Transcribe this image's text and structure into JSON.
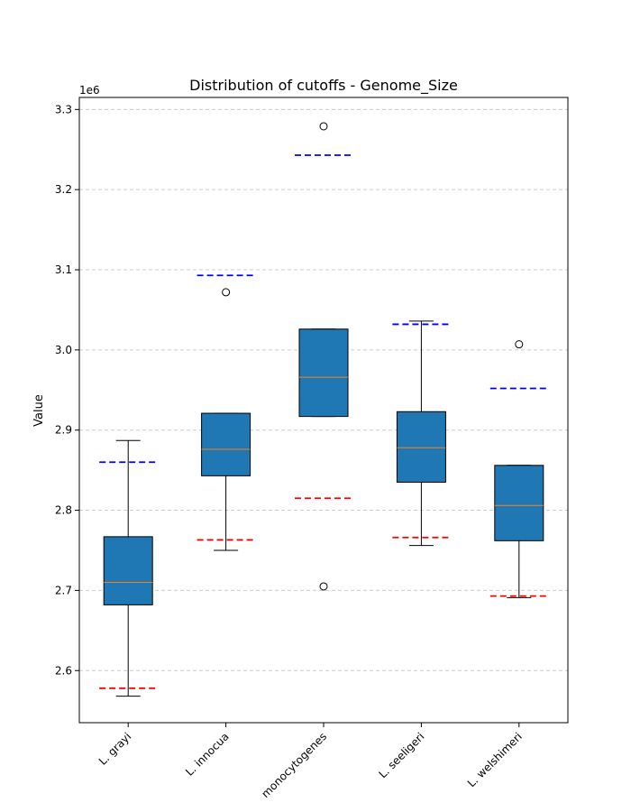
{
  "chart_data": {
    "type": "boxplot",
    "title": "Distribution of cutoffs - Genome_Size",
    "xlabel": "",
    "ylabel": "Value",
    "y_scale_label": "1e6",
    "ylim": [
      2.535,
      3.315
    ],
    "yticks": [
      2.6,
      2.7,
      2.8,
      2.9,
      3.0,
      3.1,
      3.2,
      3.3
    ],
    "ytick_labels": [
      "2.6",
      "2.7",
      "2.8",
      "2.9",
      "3.0",
      "3.1",
      "3.2",
      "3.3"
    ],
    "grid": "y-dashed",
    "categories": [
      "L. grayi",
      "L. innocua",
      "monocytogenes",
      "L. seeligeri",
      "L. welshimeri"
    ],
    "boxes": [
      {
        "whisker_low": 2.568,
        "q1": 2.682,
        "median": 2.71,
        "q3": 2.767,
        "whisker_high": 2.887,
        "outliers": [],
        "upper_cutoff": 2.86,
        "lower_cutoff": 2.578
      },
      {
        "whisker_low": 2.75,
        "q1": 2.843,
        "median": 2.876,
        "q3": 2.921,
        "whisker_high": 2.921,
        "outliers": [
          3.072
        ],
        "upper_cutoff": 3.093,
        "lower_cutoff": 2.763
      },
      {
        "whisker_low": 2.917,
        "q1": 2.917,
        "median": 2.966,
        "q3": 3.026,
        "whisker_high": 3.026,
        "outliers": [
          3.279,
          2.705
        ],
        "upper_cutoff": 3.243,
        "lower_cutoff": 2.815
      },
      {
        "whisker_low": 2.756,
        "q1": 2.835,
        "median": 2.878,
        "q3": 2.923,
        "whisker_high": 3.036,
        "outliers": [],
        "upper_cutoff": 3.032,
        "lower_cutoff": 2.766
      },
      {
        "whisker_low": 2.691,
        "q1": 2.762,
        "median": 2.806,
        "q3": 2.856,
        "whisker_high": 2.856,
        "outliers": [
          3.007
        ],
        "upper_cutoff": 2.952,
        "lower_cutoff": 2.693
      }
    ],
    "colors": {
      "box_fill": "#1f77b4",
      "median": "#ff7f0e",
      "upper_cutoff": "#0000ff",
      "lower_cutoff": "#ff0000",
      "grid": "#cccccc"
    }
  }
}
